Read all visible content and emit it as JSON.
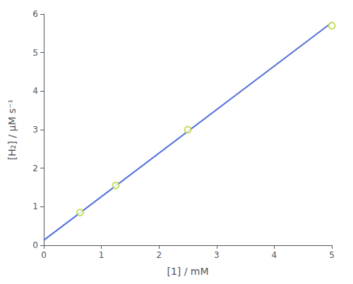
{
  "chart_data": {
    "type": "scatter",
    "xlabel": "[1] / mM",
    "ylabel": "[H₂] / μM s⁻¹",
    "series": [
      {
        "type": "line",
        "x": [
          0.0,
          5.0
        ],
        "values": [
          0.13,
          5.78
        ]
      },
      {
        "type": "scatter",
        "x": [
          0.63,
          1.25,
          2.5,
          5.0
        ],
        "values": [
          0.85,
          1.55,
          3.0,
          5.7
        ]
      }
    ],
    "xlim": [
      0,
      5
    ],
    "ylim": [
      0,
      6
    ],
    "xticks": [
      0,
      1,
      2,
      3,
      4,
      5
    ],
    "yticks": [
      0,
      1,
      2,
      3,
      4,
      5,
      6
    ],
    "grid": false
  }
}
